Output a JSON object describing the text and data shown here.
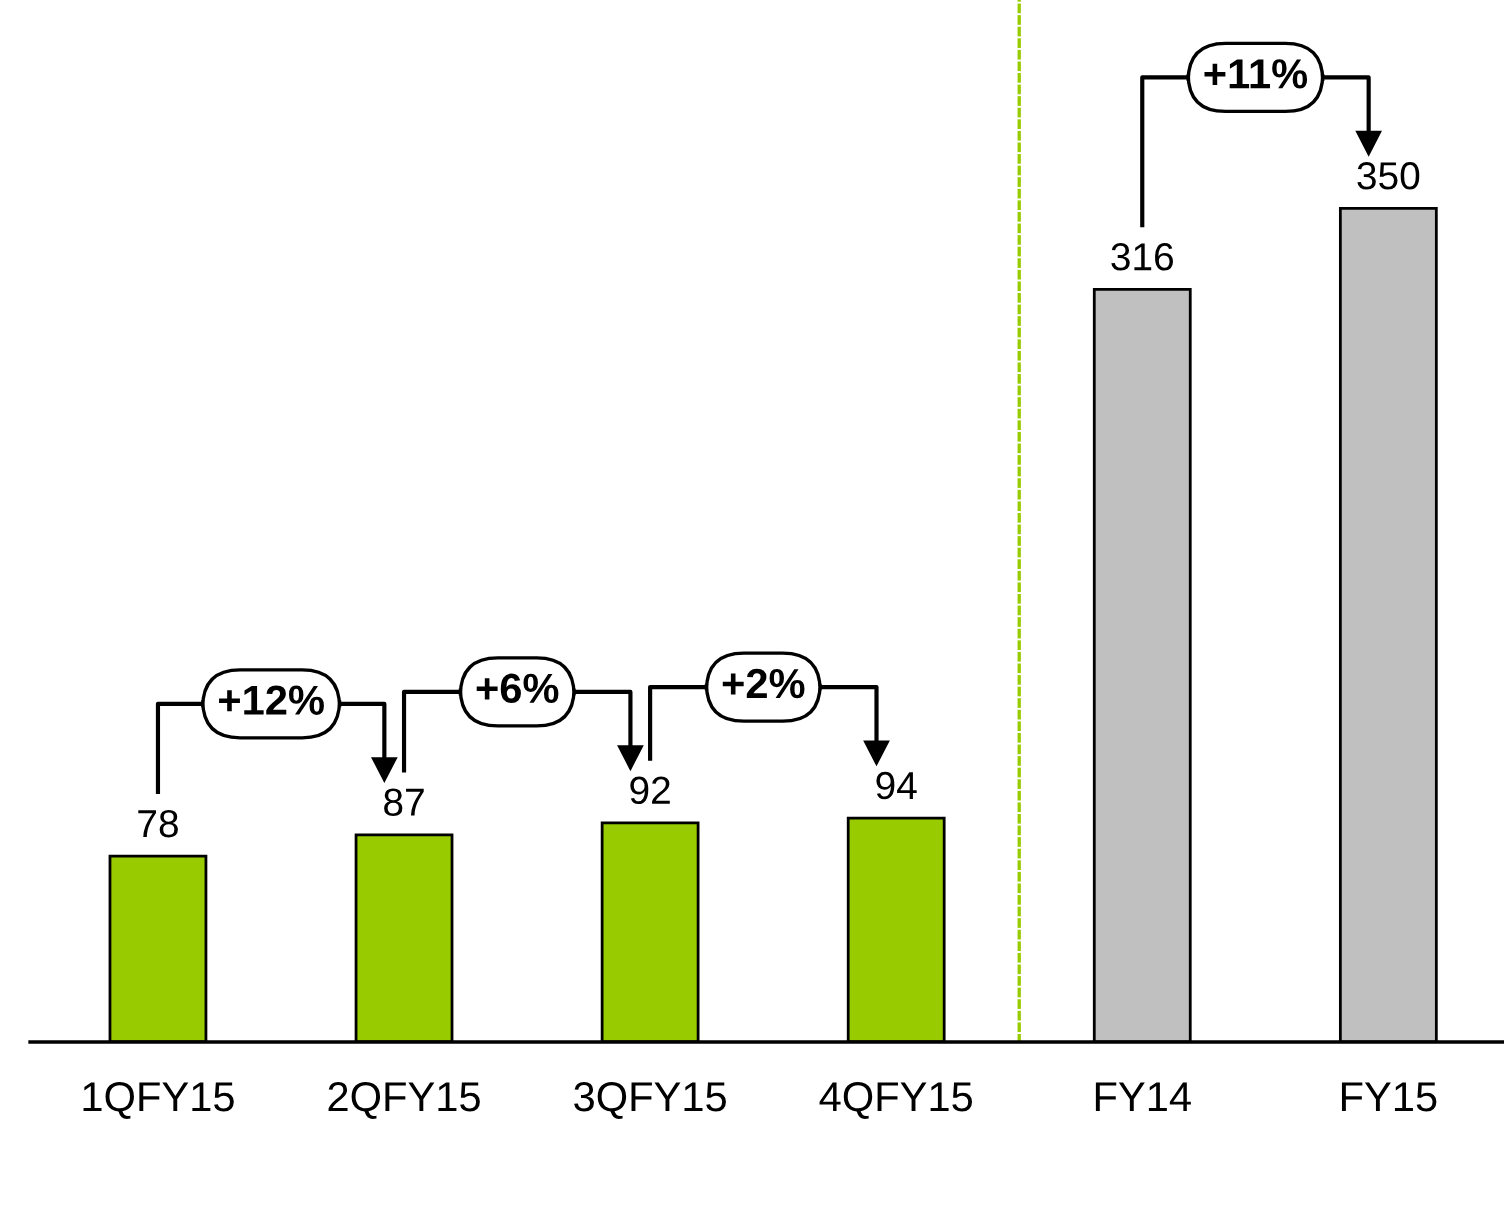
{
  "chart_data": {
    "type": "bar",
    "categories": [
      "1QFY15",
      "2QFY15",
      "3QFY15",
      "4QFY15",
      "FY14",
      "FY15"
    ],
    "values": [
      78,
      87,
      92,
      94,
      316,
      350
    ],
    "colors": [
      "#99cc00",
      "#99cc00",
      "#99cc00",
      "#99cc00",
      "#c0c0c0",
      "#c0c0c0"
    ],
    "data_labels": true,
    "annotations": [
      "+12%",
      "+6%",
      "+2%",
      "+11%"
    ],
    "grid": false
  }
}
